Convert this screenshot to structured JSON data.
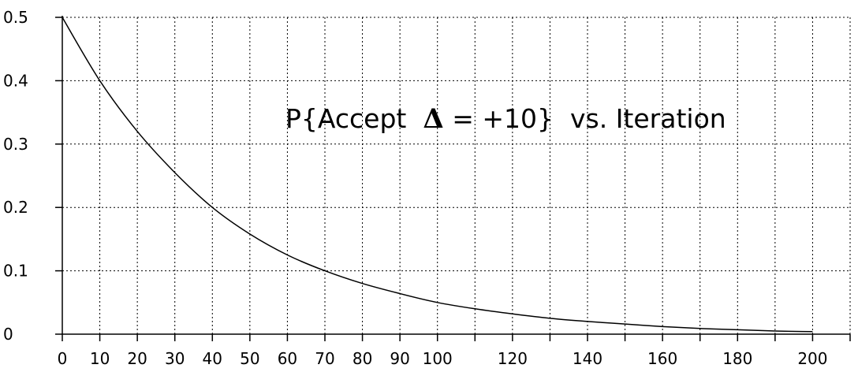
{
  "chart_data": {
    "type": "line",
    "title_parts": [
      "P{Accept  ",
      "Δ",
      " = +10}  vs. Iteration"
    ],
    "xlabel": "",
    "ylabel": "",
    "xlim": [
      0,
      210
    ],
    "ylim": [
      0,
      0.5
    ],
    "xticks": [
      0,
      10,
      20,
      30,
      40,
      50,
      60,
      70,
      80,
      90,
      100,
      110,
      120,
      130,
      140,
      150,
      160,
      170,
      180,
      190,
      200,
      210
    ],
    "xtick_labels": [
      "0",
      "10",
      "20",
      "30",
      "40",
      "50",
      "60",
      "70",
      "80",
      "90",
      "100",
      "",
      "120",
      "",
      "140",
      "",
      "160",
      "",
      "180",
      "",
      "200",
      ""
    ],
    "yticks": [
      0,
      0.1,
      0.2,
      0.3,
      0.4,
      0.5
    ],
    "ytick_labels": [
      "0",
      "0.1",
      "0.2",
      "0.3",
      "0.4",
      "0.5"
    ],
    "grid": true,
    "line_color": "#000000",
    "series": [
      {
        "x": [
          0,
          10,
          20,
          30,
          40,
          50,
          60,
          70,
          80,
          90,
          100,
          110,
          120,
          130,
          140,
          150,
          160,
          170,
          180,
          190,
          200
        ],
        "values": [
          0.5,
          0.4,
          0.32,
          0.255,
          0.2,
          0.158,
          0.125,
          0.1,
          0.08,
          0.064,
          0.05,
          0.04,
          0.032,
          0.025,
          0.02,
          0.016,
          0.012,
          0.009,
          0.007,
          0.005,
          0.004
        ]
      }
    ]
  }
}
